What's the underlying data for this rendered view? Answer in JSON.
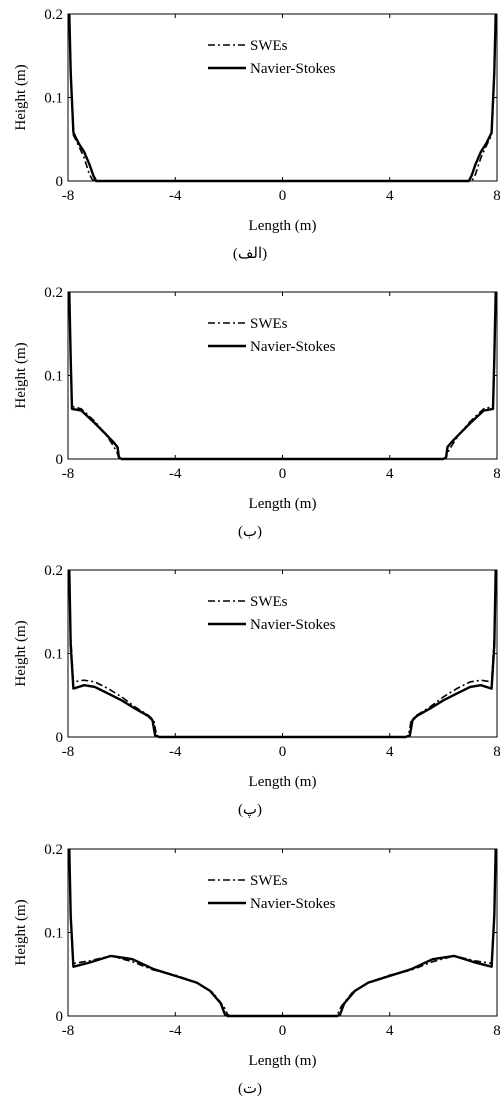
{
  "figure": {
    "legend": {
      "swe_label": "SWEs",
      "ns_label": "Navier-Stokes"
    },
    "xlabel": "Length (m)",
    "ylabel": "Height (m)",
    "xticks": [
      "-8",
      "-4",
      "0",
      "4",
      "8"
    ],
    "yticks": [
      "0",
      "0.1",
      "0.2"
    ]
  },
  "chart_data": [
    {
      "type": "line",
      "caption": "(الف)",
      "xlim": [
        -8,
        8
      ],
      "ylim": [
        0,
        0.2
      ],
      "grid": false,
      "legend_position": "top-center",
      "series": [
        {
          "name": "SWEs",
          "style": "dash-dot",
          "color": "#000000",
          "x": [
            -7.95,
            -7.9,
            -7.8,
            -7.6,
            -7.4,
            -7.2,
            -7.1,
            -7.0,
            -6.9,
            6.9,
            7.0,
            7.1,
            7.2,
            7.4,
            7.6,
            7.8,
            7.9,
            7.95
          ],
          "y": [
            0.2,
            0.13,
            0.055,
            0.042,
            0.028,
            0.008,
            0.002,
            0.0,
            0.0,
            0.0,
            0.0,
            0.002,
            0.008,
            0.028,
            0.042,
            0.055,
            0.13,
            0.2
          ]
        },
        {
          "name": "Navier-Stokes",
          "style": "solid",
          "color": "#000000",
          "x": [
            -7.95,
            -7.9,
            -7.8,
            -7.6,
            -7.4,
            -7.2,
            -7.05,
            -6.95,
            -6.8,
            6.8,
            6.95,
            7.05,
            7.2,
            7.4,
            7.6,
            7.8,
            7.9,
            7.95
          ],
          "y": [
            0.2,
            0.13,
            0.058,
            0.045,
            0.035,
            0.02,
            0.006,
            0.0,
            0.0,
            0.0,
            0.0,
            0.006,
            0.02,
            0.035,
            0.045,
            0.058,
            0.13,
            0.2
          ]
        }
      ]
    },
    {
      "type": "line",
      "caption": "(ب)",
      "xlim": [
        -8,
        8
      ],
      "ylim": [
        0,
        0.2
      ],
      "grid": false,
      "legend_position": "top-center",
      "series": [
        {
          "name": "SWEs",
          "style": "dash-dot",
          "color": "#000000",
          "x": [
            -7.95,
            -7.9,
            -7.85,
            -7.5,
            -7.0,
            -6.6,
            -6.35,
            -6.2,
            -6.1,
            -6.0,
            6.0,
            6.1,
            6.2,
            6.35,
            6.6,
            7.0,
            7.5,
            7.85,
            7.9,
            7.95
          ],
          "y": [
            0.2,
            0.12,
            0.063,
            0.06,
            0.045,
            0.03,
            0.018,
            0.01,
            0.002,
            0.0,
            0.0,
            0.002,
            0.01,
            0.018,
            0.03,
            0.045,
            0.06,
            0.063,
            0.12,
            0.2
          ]
        },
        {
          "name": "Navier-Stokes",
          "style": "solid",
          "color": "#000000",
          "x": [
            -7.95,
            -7.9,
            -7.85,
            -7.5,
            -7.0,
            -6.6,
            -6.3,
            -6.15,
            -6.1,
            -6.0,
            6.0,
            6.1,
            6.15,
            6.3,
            6.6,
            7.0,
            7.5,
            7.85,
            7.9,
            7.95
          ],
          "y": [
            0.2,
            0.12,
            0.06,
            0.058,
            0.043,
            0.03,
            0.02,
            0.014,
            0.002,
            0.0,
            0.0,
            0.002,
            0.014,
            0.02,
            0.03,
            0.043,
            0.058,
            0.06,
            0.12,
            0.2
          ]
        }
      ]
    },
    {
      "type": "line",
      "caption": "(پ)",
      "xlim": [
        -8,
        8
      ],
      "ylim": [
        0,
        0.2
      ],
      "grid": false,
      "legend_position": "top-center",
      "series": [
        {
          "name": "SWEs",
          "style": "dash-dot",
          "color": "#000000",
          "x": [
            -7.95,
            -7.9,
            -7.8,
            -7.4,
            -7.0,
            -6.5,
            -6.0,
            -5.5,
            -5.0,
            -4.8,
            -4.7,
            -4.6,
            4.6,
            4.7,
            4.8,
            5.0,
            5.5,
            6.0,
            6.5,
            7.0,
            7.4,
            7.8,
            7.9,
            7.95
          ],
          "y": [
            0.2,
            0.12,
            0.066,
            0.068,
            0.066,
            0.058,
            0.048,
            0.036,
            0.026,
            0.02,
            0.002,
            0.0,
            0.0,
            0.002,
            0.02,
            0.026,
            0.036,
            0.048,
            0.058,
            0.066,
            0.068,
            0.066,
            0.12,
            0.2
          ]
        },
        {
          "name": "Navier-Stokes",
          "style": "solid",
          "color": "#000000",
          "x": [
            -7.95,
            -7.9,
            -7.8,
            -7.4,
            -7.0,
            -6.5,
            -6.0,
            -5.5,
            -5.0,
            -4.85,
            -4.75,
            -4.6,
            4.6,
            4.75,
            4.85,
            5.0,
            5.5,
            6.0,
            6.5,
            7.0,
            7.4,
            7.8,
            7.9,
            7.95
          ],
          "y": [
            0.2,
            0.11,
            0.058,
            0.062,
            0.06,
            0.052,
            0.044,
            0.034,
            0.025,
            0.02,
            0.002,
            0.0,
            0.0,
            0.002,
            0.02,
            0.025,
            0.034,
            0.044,
            0.052,
            0.06,
            0.062,
            0.058,
            0.11,
            0.2
          ]
        }
      ]
    },
    {
      "type": "line",
      "caption": "(ت)",
      "xlim": [
        -8,
        8
      ],
      "ylim": [
        0,
        0.2
      ],
      "grid": false,
      "legend_position": "top-center",
      "series": [
        {
          "name": "SWEs",
          "style": "dash-dot",
          "color": "#000000",
          "x": [
            -7.95,
            -7.9,
            -7.8,
            -7.2,
            -6.4,
            -5.6,
            -4.8,
            -4.0,
            -3.2,
            -2.6,
            -2.2,
            -2.05,
            -1.95,
            1.95,
            2.05,
            2.2,
            2.6,
            3.2,
            4.0,
            4.8,
            5.6,
            6.4,
            7.2,
            7.8,
            7.9,
            7.95
          ],
          "y": [
            0.2,
            0.12,
            0.063,
            0.066,
            0.072,
            0.065,
            0.055,
            0.049,
            0.04,
            0.028,
            0.012,
            0.002,
            0.0,
            0.0,
            0.002,
            0.012,
            0.028,
            0.04,
            0.049,
            0.055,
            0.065,
            0.072,
            0.066,
            0.063,
            0.12,
            0.2
          ]
        },
        {
          "name": "Navier-Stokes",
          "style": "solid",
          "color": "#000000",
          "x": [
            -7.95,
            -7.9,
            -7.8,
            -7.2,
            -6.4,
            -5.6,
            -4.8,
            -4.0,
            -3.2,
            -2.7,
            -2.3,
            -2.15,
            -2.05,
            2.05,
            2.15,
            2.3,
            2.7,
            3.2,
            4.0,
            4.8,
            5.6,
            6.4,
            7.2,
            7.8,
            7.9,
            7.95
          ],
          "y": [
            0.2,
            0.12,
            0.059,
            0.064,
            0.072,
            0.068,
            0.056,
            0.048,
            0.04,
            0.03,
            0.015,
            0.002,
            0.0,
            0.0,
            0.002,
            0.015,
            0.03,
            0.04,
            0.048,
            0.056,
            0.068,
            0.072,
            0.064,
            0.059,
            0.12,
            0.2
          ]
        }
      ]
    }
  ]
}
